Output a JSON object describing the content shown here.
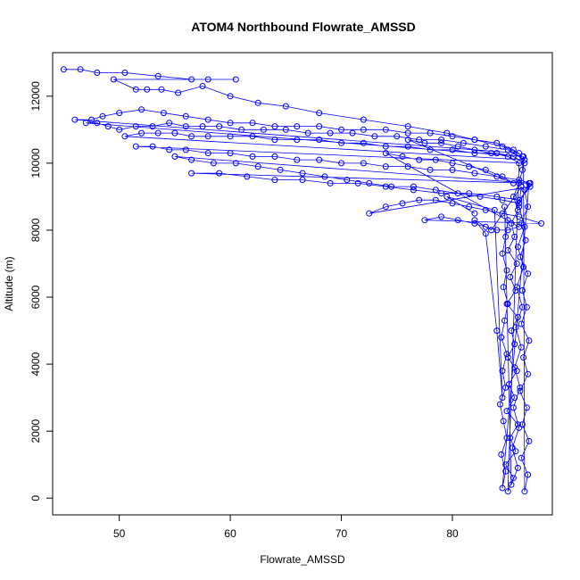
{
  "chart_data": {
    "type": "scatter",
    "title": "ATOM4 Northbound Flowrate_AMSSD",
    "xlabel": "Flowrate_AMSSD",
    "ylabel": "Altitude (m)",
    "xlim": [
      44,
      89
    ],
    "ylim": [
      -500,
      13300
    ],
    "xticks": [
      50,
      60,
      70,
      80
    ],
    "yticks": [
      0,
      2000,
      4000,
      6000,
      8000,
      10000,
      12000
    ],
    "grid": false,
    "legend": "none",
    "style": "points-and-lines",
    "series": [
      {
        "color": "#0000ff",
        "points": [
          [
            45.0,
            12800
          ],
          [
            46.5,
            12800
          ],
          [
            48.0,
            12700
          ],
          [
            50.5,
            12700
          ],
          [
            53.5,
            12600
          ],
          [
            56.5,
            12500
          ],
          [
            58.0,
            12500
          ],
          [
            60.5,
            12500
          ],
          [
            49.5,
            12500
          ],
          [
            51.5,
            12200
          ],
          [
            52.5,
            12200
          ],
          [
            53.8,
            12200
          ],
          [
            55.3,
            12100
          ],
          [
            57.5,
            12300
          ],
          [
            60.0,
            12000
          ],
          [
            62.5,
            11800
          ],
          [
            65.0,
            11700
          ],
          [
            68.0,
            11500
          ],
          [
            72.0,
            11300
          ],
          [
            76.0,
            11100
          ],
          [
            79.5,
            10900
          ],
          [
            82.0,
            10700
          ],
          [
            84.5,
            10500
          ],
          [
            86.0,
            10300
          ],
          [
            46.0,
            11300
          ],
          [
            47.5,
            11300
          ],
          [
            48.5,
            11400
          ],
          [
            50.0,
            11500
          ],
          [
            52.0,
            11600
          ],
          [
            54.0,
            11500
          ],
          [
            56.0,
            11400
          ],
          [
            58.0,
            11300
          ],
          [
            60.0,
            11200
          ],
          [
            62.0,
            11200
          ],
          [
            64.0,
            11100
          ],
          [
            66.0,
            11100
          ],
          [
            68.0,
            11100
          ],
          [
            70.0,
            11000
          ],
          [
            72.0,
            11000
          ],
          [
            74.0,
            11000
          ],
          [
            76.0,
            10900
          ],
          [
            78.0,
            10900
          ],
          [
            80.0,
            10800
          ],
          [
            82.0,
            10700
          ],
          [
            84.0,
            10600
          ],
          [
            85.5,
            10400
          ],
          [
            86.3,
            10200
          ],
          [
            47.0,
            11200
          ],
          [
            48.0,
            11200
          ],
          [
            49.0,
            11100
          ],
          [
            50.0,
            11000
          ],
          [
            51.5,
            11100
          ],
          [
            53.0,
            11100
          ],
          [
            54.5,
            11200
          ],
          [
            56.0,
            11100
          ],
          [
            57.5,
            11100
          ],
          [
            59.0,
            11100
          ],
          [
            61.0,
            11000
          ],
          [
            63.0,
            11000
          ],
          [
            65.0,
            11000
          ],
          [
            67.0,
            10900
          ],
          [
            69.0,
            10900
          ],
          [
            71.0,
            10900
          ],
          [
            73.0,
            10800
          ],
          [
            75.0,
            10800
          ],
          [
            77.0,
            10700
          ],
          [
            79.0,
            10700
          ],
          [
            81.0,
            10600
          ],
          [
            83.0,
            10500
          ],
          [
            85.0,
            10400
          ],
          [
            86.5,
            10100
          ],
          [
            50.5,
            10800
          ],
          [
            52.0,
            10900
          ],
          [
            53.5,
            10900
          ],
          [
            55.0,
            10900
          ],
          [
            56.5,
            10800
          ],
          [
            58.0,
            10800
          ],
          [
            60.0,
            10800
          ],
          [
            62.0,
            10800
          ],
          [
            64.0,
            10700
          ],
          [
            66.0,
            10700
          ],
          [
            68.0,
            10700
          ],
          [
            70.0,
            10600
          ],
          [
            72.0,
            10600
          ],
          [
            74.0,
            10500
          ],
          [
            76.0,
            10500
          ],
          [
            78.0,
            10400
          ],
          [
            80.0,
            10400
          ],
          [
            82.0,
            10300
          ],
          [
            84.0,
            10300
          ],
          [
            85.5,
            10200
          ],
          [
            86.5,
            10000
          ],
          [
            51.5,
            10500
          ],
          [
            53.0,
            10500
          ],
          [
            54.5,
            10400
          ],
          [
            56.0,
            10400
          ],
          [
            58.0,
            10300
          ],
          [
            60.0,
            10300
          ],
          [
            62.0,
            10200
          ],
          [
            64.0,
            10200
          ],
          [
            66.0,
            10100
          ],
          [
            68.0,
            10100
          ],
          [
            70.0,
            10000
          ],
          [
            72.0,
            10000
          ],
          [
            74.0,
            9900
          ],
          [
            76.0,
            9900
          ],
          [
            78.0,
            9800
          ],
          [
            80.0,
            9800
          ],
          [
            82.0,
            9700
          ],
          [
            84.0,
            9600
          ],
          [
            86.0,
            9500
          ],
          [
            87.0,
            9400
          ],
          [
            55.0,
            10200
          ],
          [
            56.5,
            10100
          ],
          [
            58.5,
            10000
          ],
          [
            60.5,
            10000
          ],
          [
            62.5,
            9900
          ],
          [
            64.5,
            9800
          ],
          [
            66.5,
            9700
          ],
          [
            68.5,
            9600
          ],
          [
            70.5,
            9500
          ],
          [
            72.5,
            9400
          ],
          [
            74.5,
            9300
          ],
          [
            76.5,
            9300
          ],
          [
            78.5,
            9200
          ],
          [
            80.5,
            9100
          ],
          [
            82.5,
            9000
          ],
          [
            84.5,
            8900
          ],
          [
            86.0,
            8800
          ],
          [
            87.0,
            9400
          ],
          [
            56.5,
            9700
          ],
          [
            59.0,
            9700
          ],
          [
            61.5,
            9600
          ],
          [
            64.0,
            9500
          ],
          [
            66.5,
            9500
          ],
          [
            69.0,
            9400
          ],
          [
            71.5,
            9400
          ],
          [
            74.0,
            9300
          ],
          [
            76.5,
            9200
          ],
          [
            79.0,
            9100
          ],
          [
            81.5,
            9100
          ],
          [
            84.0,
            9000
          ],
          [
            86.0,
            8900
          ],
          [
            87.0,
            9300
          ],
          [
            72.5,
            8500
          ],
          [
            74.0,
            8700
          ],
          [
            75.5,
            8800
          ],
          [
            77.0,
            8900
          ],
          [
            78.5,
            8900
          ],
          [
            80.0,
            8800
          ],
          [
            81.5,
            8700
          ],
          [
            83.0,
            8600
          ],
          [
            84.5,
            8500
          ],
          [
            86.0,
            8400
          ],
          [
            88.0,
            8200
          ],
          [
            77.5,
            8300
          ],
          [
            79.0,
            8400
          ],
          [
            80.5,
            8300
          ],
          [
            82.0,
            8200
          ],
          [
            83.0,
            8100
          ],
          [
            84.0,
            8000
          ],
          [
            85.0,
            8000
          ],
          [
            86.0,
            8100
          ],
          [
            74.0,
            10300
          ],
          [
            75.5,
            10200
          ],
          [
            77.0,
            10100
          ],
          [
            78.5,
            10100
          ],
          [
            80.0,
            10000
          ],
          [
            81.5,
            9900
          ],
          [
            83.0,
            9800
          ],
          [
            84.5,
            9600
          ],
          [
            85.5,
            9400
          ],
          [
            76.0,
            10700
          ],
          [
            77.5,
            10600
          ],
          [
            79.0,
            10600
          ],
          [
            80.5,
            10500
          ],
          [
            82.0,
            10400
          ],
          [
            83.5,
            10300
          ],
          [
            85.0,
            10200
          ],
          [
            86.0,
            10000
          ],
          [
            85.0,
            200
          ],
          [
            85.5,
            600
          ],
          [
            84.8,
            1000
          ],
          [
            85.7,
            1400
          ],
          [
            85.2,
            1800
          ],
          [
            85.9,
            2200
          ],
          [
            84.9,
            2600
          ],
          [
            85.6,
            3000
          ],
          [
            85.1,
            3400
          ],
          [
            85.8,
            3800
          ],
          [
            85.0,
            4200
          ],
          [
            85.6,
            4600
          ],
          [
            85.3,
            5000
          ],
          [
            85.9,
            5400
          ],
          [
            84.9,
            5800
          ],
          [
            85.7,
            6200
          ],
          [
            85.2,
            6600
          ],
          [
            85.8,
            7000
          ],
          [
            85.0,
            7400
          ],
          [
            85.6,
            7800
          ],
          [
            85.3,
            8200
          ],
          [
            85.9,
            8600
          ],
          [
            85.5,
            9000
          ],
          [
            86.0,
            9400
          ],
          [
            86.3,
            9800
          ],
          [
            86.4,
            10200
          ],
          [
            86.5,
            200
          ],
          [
            86.8,
            700
          ],
          [
            86.2,
            1200
          ],
          [
            86.9,
            1700
          ],
          [
            86.3,
            2200
          ],
          [
            86.7,
            2700
          ],
          [
            86.1,
            3200
          ],
          [
            86.8,
            3700
          ],
          [
            86.4,
            4200
          ],
          [
            86.9,
            4700
          ],
          [
            86.2,
            5200
          ],
          [
            86.7,
            5700
          ],
          [
            86.3,
            6200
          ],
          [
            86.8,
            6700
          ],
          [
            86.1,
            7200
          ],
          [
            86.6,
            7700
          ],
          [
            86.2,
            8200
          ],
          [
            86.8,
            8700
          ],
          [
            86.5,
            9200
          ],
          [
            86.9,
            9400
          ],
          [
            84.5,
            300
          ],
          [
            84.8,
            800
          ],
          [
            84.4,
            1300
          ],
          [
            84.9,
            1800
          ],
          [
            84.6,
            2300
          ],
          [
            84.3,
            2800
          ],
          [
            84.8,
            3300
          ],
          [
            84.5,
            3800
          ],
          [
            84.9,
            4300
          ],
          [
            84.4,
            4800
          ],
          [
            84.7,
            5300
          ],
          [
            85.0,
            5800
          ],
          [
            84.6,
            6300
          ],
          [
            84.9,
            6800
          ],
          [
            84.5,
            7300
          ],
          [
            84.8,
            7800
          ],
          [
            85.0,
            8300
          ],
          [
            84.7,
            8700
          ],
          [
            85.3,
            400
          ],
          [
            85.9,
            900
          ],
          [
            85.4,
            1500
          ],
          [
            86.0,
            2100
          ],
          [
            85.5,
            2700
          ],
          [
            86.1,
            3300
          ],
          [
            85.6,
            3900
          ],
          [
            86.2,
            4500
          ],
          [
            85.7,
            5100
          ],
          [
            86.3,
            5700
          ],
          [
            85.8,
            6300
          ],
          [
            86.4,
            6900
          ],
          [
            85.9,
            7500
          ],
          [
            86.5,
            8100
          ],
          [
            86.0,
            8700
          ],
          [
            86.2,
            9300
          ],
          [
            83.5,
            8000
          ],
          [
            82.0,
            8300
          ],
          [
            83.0,
            7900
          ],
          [
            84.0,
            5000
          ],
          [
            84.5,
            3000
          ],
          [
            83.8,
            8600
          ],
          [
            79.5,
            9000
          ],
          [
            82.0,
            8500
          ]
        ]
      }
    ]
  }
}
